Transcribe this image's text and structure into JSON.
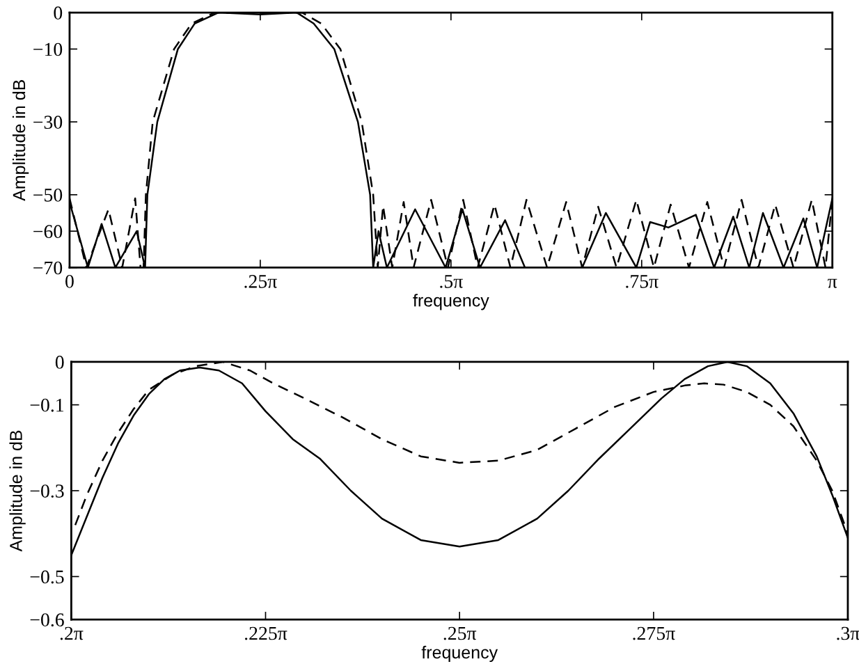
{
  "chart_data": [
    {
      "type": "line",
      "xlabel": "frequency",
      "ylabel": "Amplitude in dB",
      "xlim": [
        0,
        3.1416
      ],
      "ylim": [
        -70,
        0
      ],
      "xticks": [
        0,
        {
          "value": 0.7854,
          "label": ".25π"
        },
        {
          "value": 1.5708,
          "label": ".5π"
        },
        {
          "value": 2.3562,
          "label": ".75π"
        },
        {
          "value": 3.1416,
          "label": "π"
        }
      ],
      "yticks": [
        0,
        -10,
        -30,
        -50,
        -60,
        -70
      ],
      "grid": false,
      "legend": false,
      "marker": "none",
      "series": [
        {
          "color": "#000000",
          "line_style": "solid",
          "x": [
            0,
            0.0754,
            0.1319,
            0.1885,
            0.2765,
            0.311,
            0.3204,
            0.3613,
            0.4461,
            0.5152,
            0.6126,
            0.7854,
            0.9362,
            1.0053,
            1.0901,
            1.1875,
            1.2378,
            1.2504,
            1.2723,
            1.3069,
            1.4231,
            1.5488,
            1.6179,
            1.6902,
            1.7938,
            1.8755,
            2.1112,
            2.2086,
            2.3342,
            2.3908,
            2.4662,
            2.5793,
            2.6546,
            2.7332,
            2.7991,
            2.8557,
            2.9405,
            3.0222,
            3.0788,
            3.1416
          ],
          "values": [
            -52,
            -70,
            -58,
            -70,
            -60,
            -70,
            -50,
            -30,
            -10,
            -3,
            0,
            -0.5,
            0,
            -3,
            -10,
            -30,
            -50,
            -70,
            -60,
            -70,
            -54,
            -70,
            -54,
            -70,
            -57,
            -70,
            -70,
            -55,
            -70,
            -57.5,
            -59,
            -55.5,
            -70,
            -56,
            -70,
            -55,
            -70,
            -56.5,
            -70,
            -51
          ]
        },
        {
          "color": "#000000",
          "line_style": "dashed",
          "x": [
            0,
            0.0691,
            0.1602,
            0.2168,
            0.2702,
            0.2922,
            0.3047,
            0.3142,
            0.3424,
            0.4304,
            0.5027,
            0.5969,
            0.7854,
            0.9582,
            1.0367,
            1.1153,
            1.2032,
            1.2504,
            1.2692,
            1.2912,
            1.3289,
            1.376,
            1.4168,
            1.4891,
            1.5582,
            1.6211,
            1.6808,
            1.7499,
            1.8158,
            1.8818,
            1.9666,
            2.0452,
            2.1112,
            2.1771,
            2.2525,
            2.3342,
            2.4065,
            2.4756,
            2.551,
            2.6264,
            2.6955,
            2.7677,
            2.8368,
            2.906,
            2.9814,
            3.0568,
            3.1133,
            3.1416
          ],
          "values": [
            -51,
            -70,
            -54,
            -70,
            -51,
            -70,
            -70,
            -50,
            -30,
            -10,
            -3,
            0,
            -0.2,
            0,
            -3,
            -10,
            -30,
            -50,
            -70,
            -53,
            -70,
            -52,
            -70,
            -51.4,
            -70,
            -51.4,
            -70,
            -52.7,
            -70,
            -51.4,
            -70,
            -52,
            -70,
            -53.3,
            -70,
            -51.4,
            -70,
            -52.7,
            -70,
            -52,
            -70,
            -51.4,
            -70,
            -52.7,
            -70,
            -51.4,
            -70,
            -51
          ]
        }
      ]
    },
    {
      "type": "line",
      "xlabel": "frequency",
      "ylabel": "Amplitude in dB",
      "xlim": [
        0.6283,
        0.9425
      ],
      "ylim": [
        -0.6,
        0
      ],
      "xticks": [
        {
          "value": 0.6283,
          "label": ".2π"
        },
        {
          "value": 0.7069,
          "label": ".225π"
        },
        {
          "value": 0.7854,
          "label": ".25π"
        },
        {
          "value": 0.8639,
          "label": ".275π"
        },
        {
          "value": 0.9425,
          "label": ".3π"
        }
      ],
      "yticks": [
        0,
        -0.1,
        -0.3,
        -0.5,
        -0.6
      ],
      "grid": false,
      "legend": false,
      "marker": "none",
      "series": [
        {
          "color": "#000000",
          "line_style": "solid",
          "x": [
            0.6283,
            0.6346,
            0.6409,
            0.6472,
            0.6535,
            0.6597,
            0.666,
            0.6723,
            0.6802,
            0.688,
            0.6974,
            0.7069,
            0.7179,
            0.7288,
            0.7414,
            0.754,
            0.7697,
            0.7854,
            0.8011,
            0.8168,
            0.8294,
            0.8419,
            0.8545,
            0.8671,
            0.8765,
            0.8859,
            0.8938,
            0.9016,
            0.9111,
            0.9205,
            0.9299,
            0.9362,
            0.9425
          ],
          "values": [
            -0.45,
            -0.36,
            -0.27,
            -0.19,
            -0.125,
            -0.075,
            -0.04,
            -0.02,
            -0.013,
            -0.02,
            -0.05,
            -0.115,
            -0.18,
            -0.225,
            -0.3,
            -0.365,
            -0.415,
            -0.43,
            -0.415,
            -0.365,
            -0.3,
            -0.225,
            -0.155,
            -0.085,
            -0.04,
            -0.01,
            0,
            -0.01,
            -0.05,
            -0.12,
            -0.22,
            -0.31,
            -0.41
          ]
        },
        {
          "color": "#000000",
          "line_style": "dashed",
          "x": [
            0.6299,
            0.6346,
            0.6409,
            0.6472,
            0.6535,
            0.6597,
            0.6692,
            0.6786,
            0.6896,
            0.7006,
            0.71,
            0.7226,
            0.7383,
            0.754,
            0.7697,
            0.7854,
            0.8011,
            0.8168,
            0.8325,
            0.8482,
            0.8639,
            0.8765,
            0.8844,
            0.8922,
            0.9016,
            0.9111,
            0.9205,
            0.9299,
            0.9362,
            0.9425
          ],
          "values": [
            -0.38,
            -0.31,
            -0.23,
            -0.165,
            -0.11,
            -0.065,
            -0.03,
            -0.01,
            0,
            -0.02,
            -0.05,
            -0.085,
            -0.13,
            -0.18,
            -0.22,
            -0.235,
            -0.23,
            -0.205,
            -0.155,
            -0.105,
            -0.07,
            -0.055,
            -0.05,
            -0.053,
            -0.07,
            -0.1,
            -0.15,
            -0.23,
            -0.3,
            -0.4
          ]
        }
      ]
    }
  ]
}
